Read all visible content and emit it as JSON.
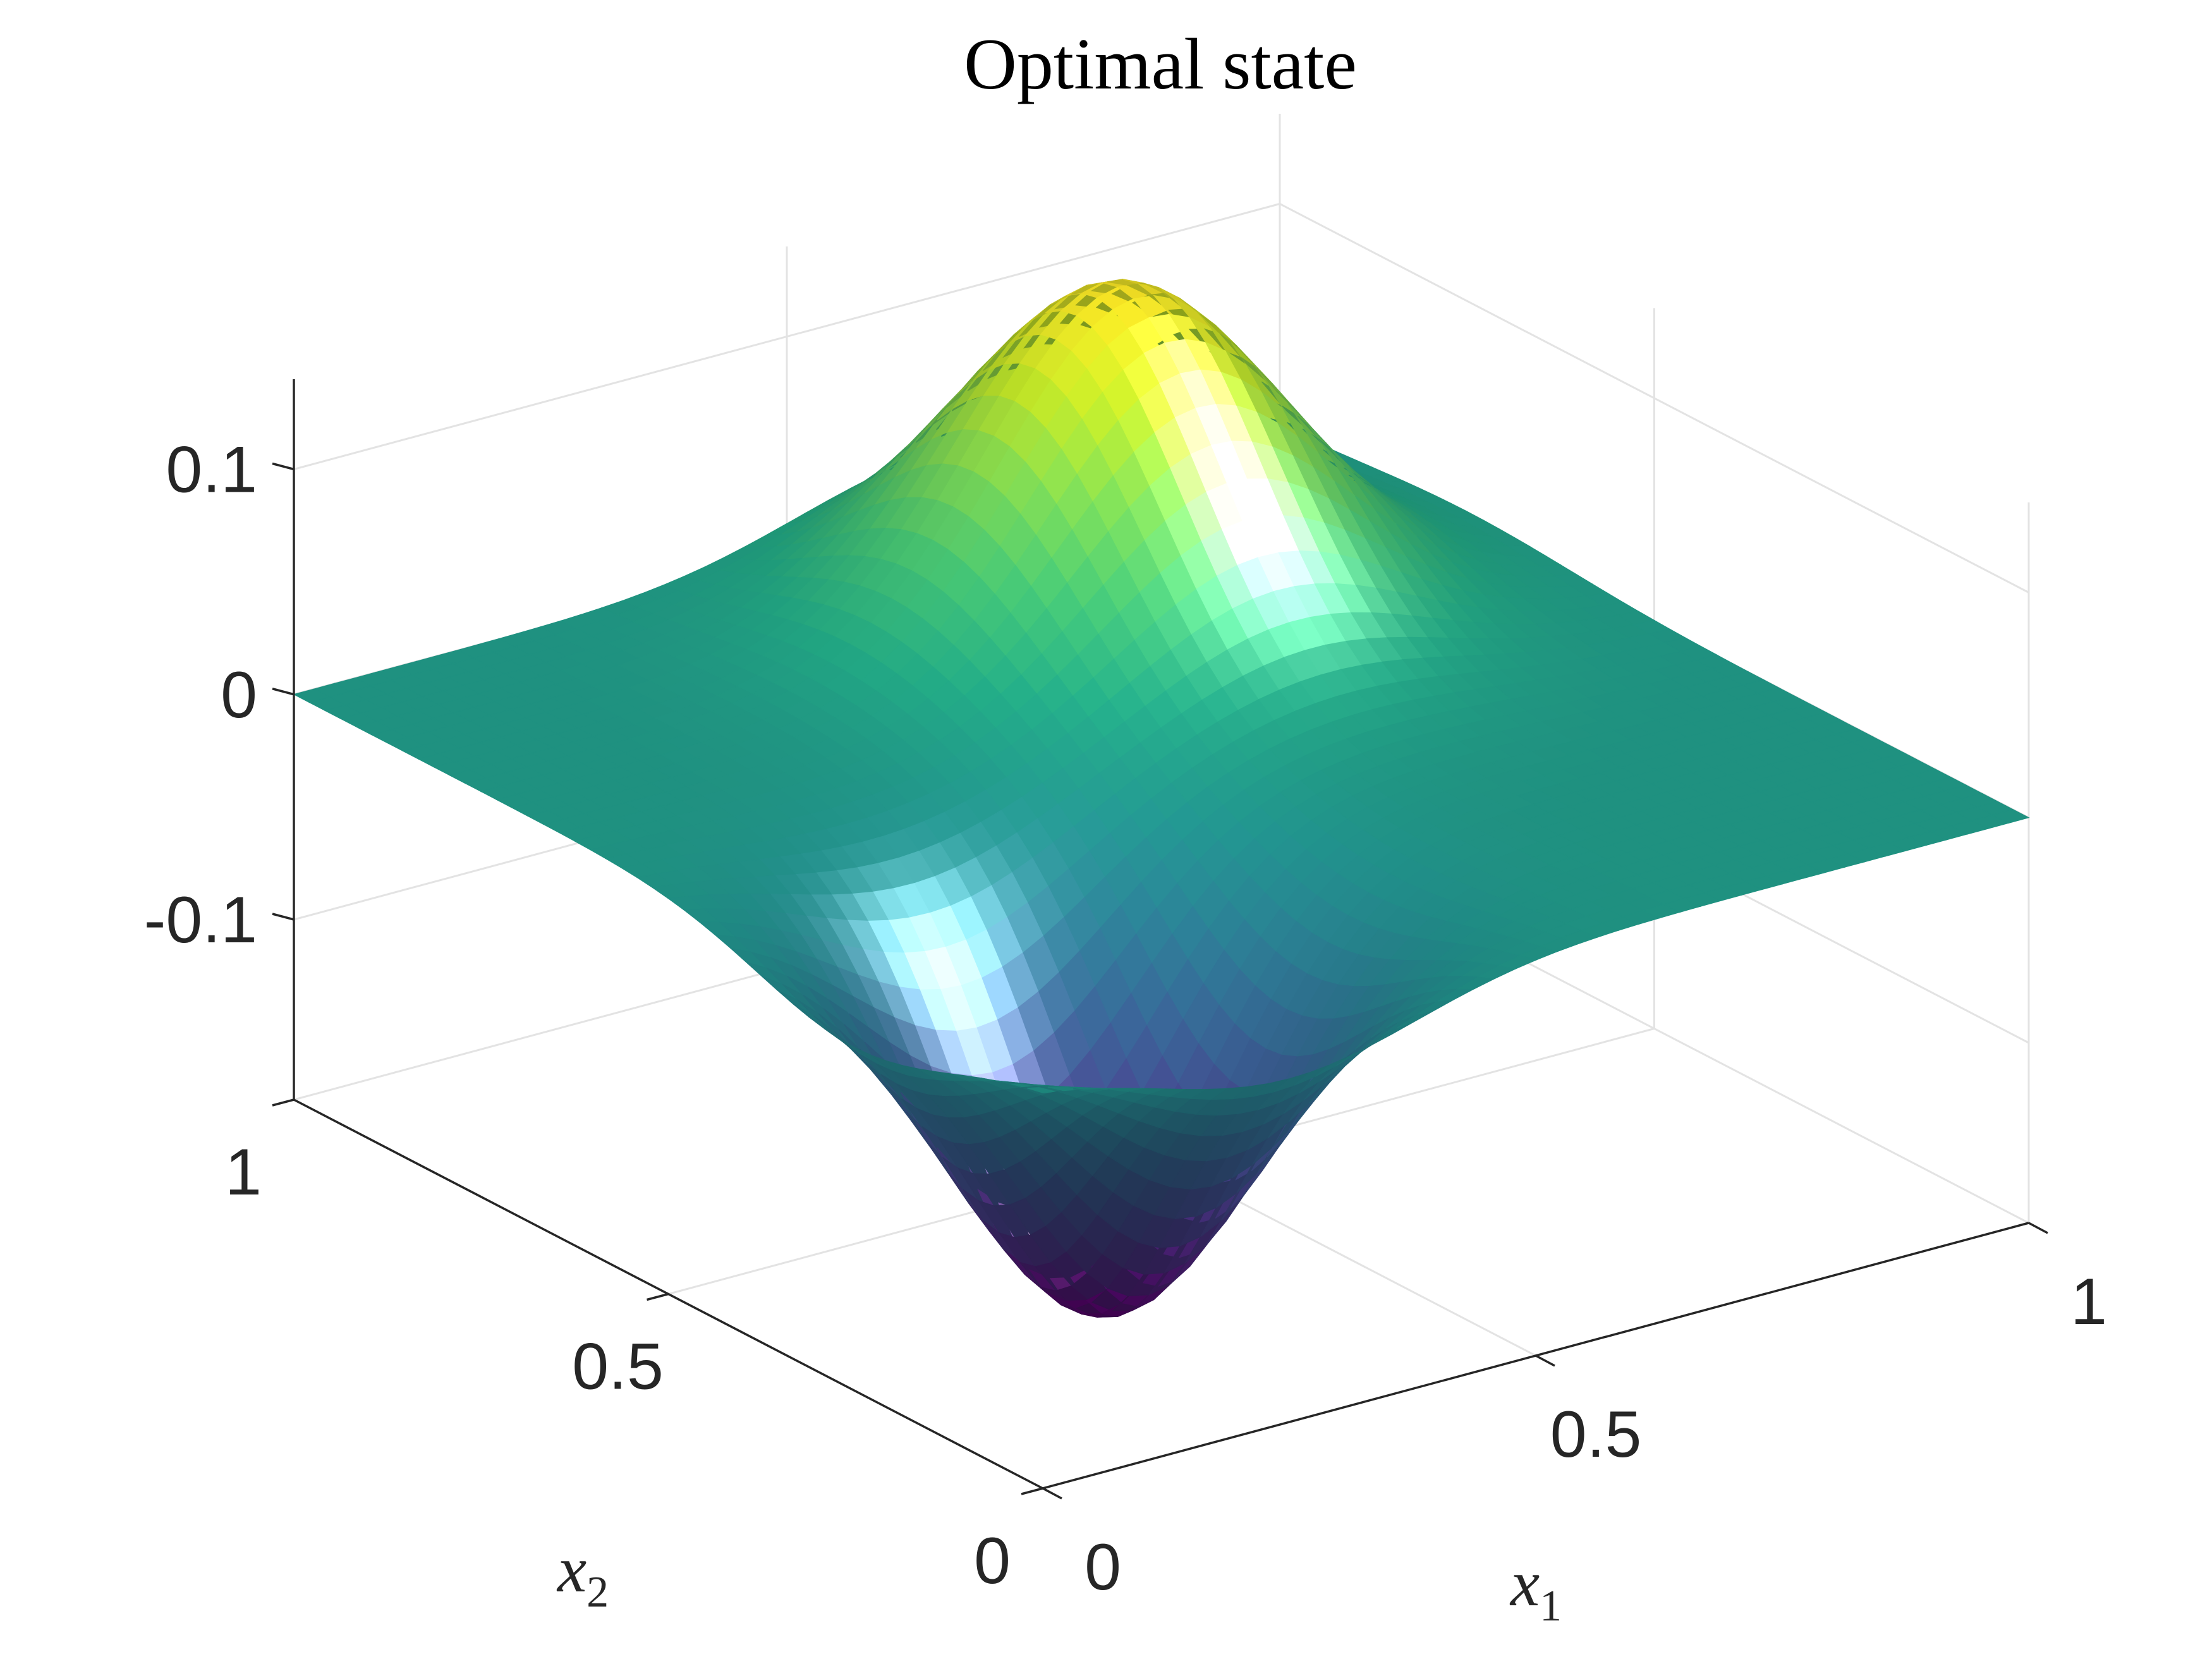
{
  "chart_data": {
    "type": "surface",
    "title": "Optimal state",
    "xlabel": "x",
    "xlabel_sub": "1",
    "ylabel": "x",
    "ylabel_sub": "2",
    "zlabel": "",
    "xlim": [
      0,
      1
    ],
    "ylim": [
      0,
      1
    ],
    "zlim": [
      -0.18,
      0.14
    ],
    "x_ticks": [
      {
        "value": 0,
        "label": "0"
      },
      {
        "value": 0.5,
        "label": "0.5"
      },
      {
        "value": 1,
        "label": "1"
      }
    ],
    "y_ticks": [
      {
        "value": 0,
        "label": "0"
      },
      {
        "value": 0.5,
        "label": "0.5"
      },
      {
        "value": 1,
        "label": "1"
      }
    ],
    "z_ticks": [
      {
        "value": -0.1,
        "label": "-0.1"
      },
      {
        "value": 0,
        "label": "0"
      },
      {
        "value": 0.1,
        "label": "0.1"
      }
    ],
    "grid": true,
    "colormap": "viridis",
    "surface": {
      "description_formula": "sum of Gaussian bumps over the unit square",
      "components": [
        {
          "center_x1": 0.65,
          "center_x2": 0.75,
          "amplitude": 0.148,
          "width": 0.14
        },
        {
          "center_x1": 0.25,
          "center_x2": 0.25,
          "amplitude": -0.175,
          "width": 0.13
        }
      ],
      "peak": {
        "x1": 0.65,
        "x2": 0.75,
        "value": 0.148
      },
      "trough": {
        "x1": 0.25,
        "x2": 0.25,
        "value": -0.175
      }
    }
  }
}
